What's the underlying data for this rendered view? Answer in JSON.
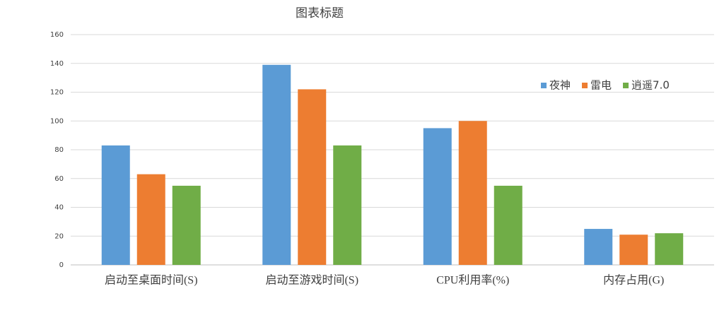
{
  "chart_data": {
    "type": "bar",
    "title": "图表标题",
    "categories": [
      "启动至桌面时间(S)",
      "启动至游戏时间(S)",
      "CPU利用率(%)",
      "内存占用(G)"
    ],
    "series": [
      {
        "name": "夜神",
        "color": "#5b9bd5",
        "values": [
          83,
          139,
          95,
          25
        ]
      },
      {
        "name": "雷电",
        "color": "#ed7d31",
        "values": [
          63,
          122,
          100,
          21
        ]
      },
      {
        "name": "逍遥7.0",
        "color": "#70ad47",
        "values": [
          55,
          83,
          55,
          22
        ]
      }
    ],
    "ylim": [
      0,
      160
    ],
    "yticks": [
      0,
      20,
      40,
      60,
      80,
      100,
      120,
      140,
      160
    ],
    "grid": true,
    "legend": "upper right"
  }
}
